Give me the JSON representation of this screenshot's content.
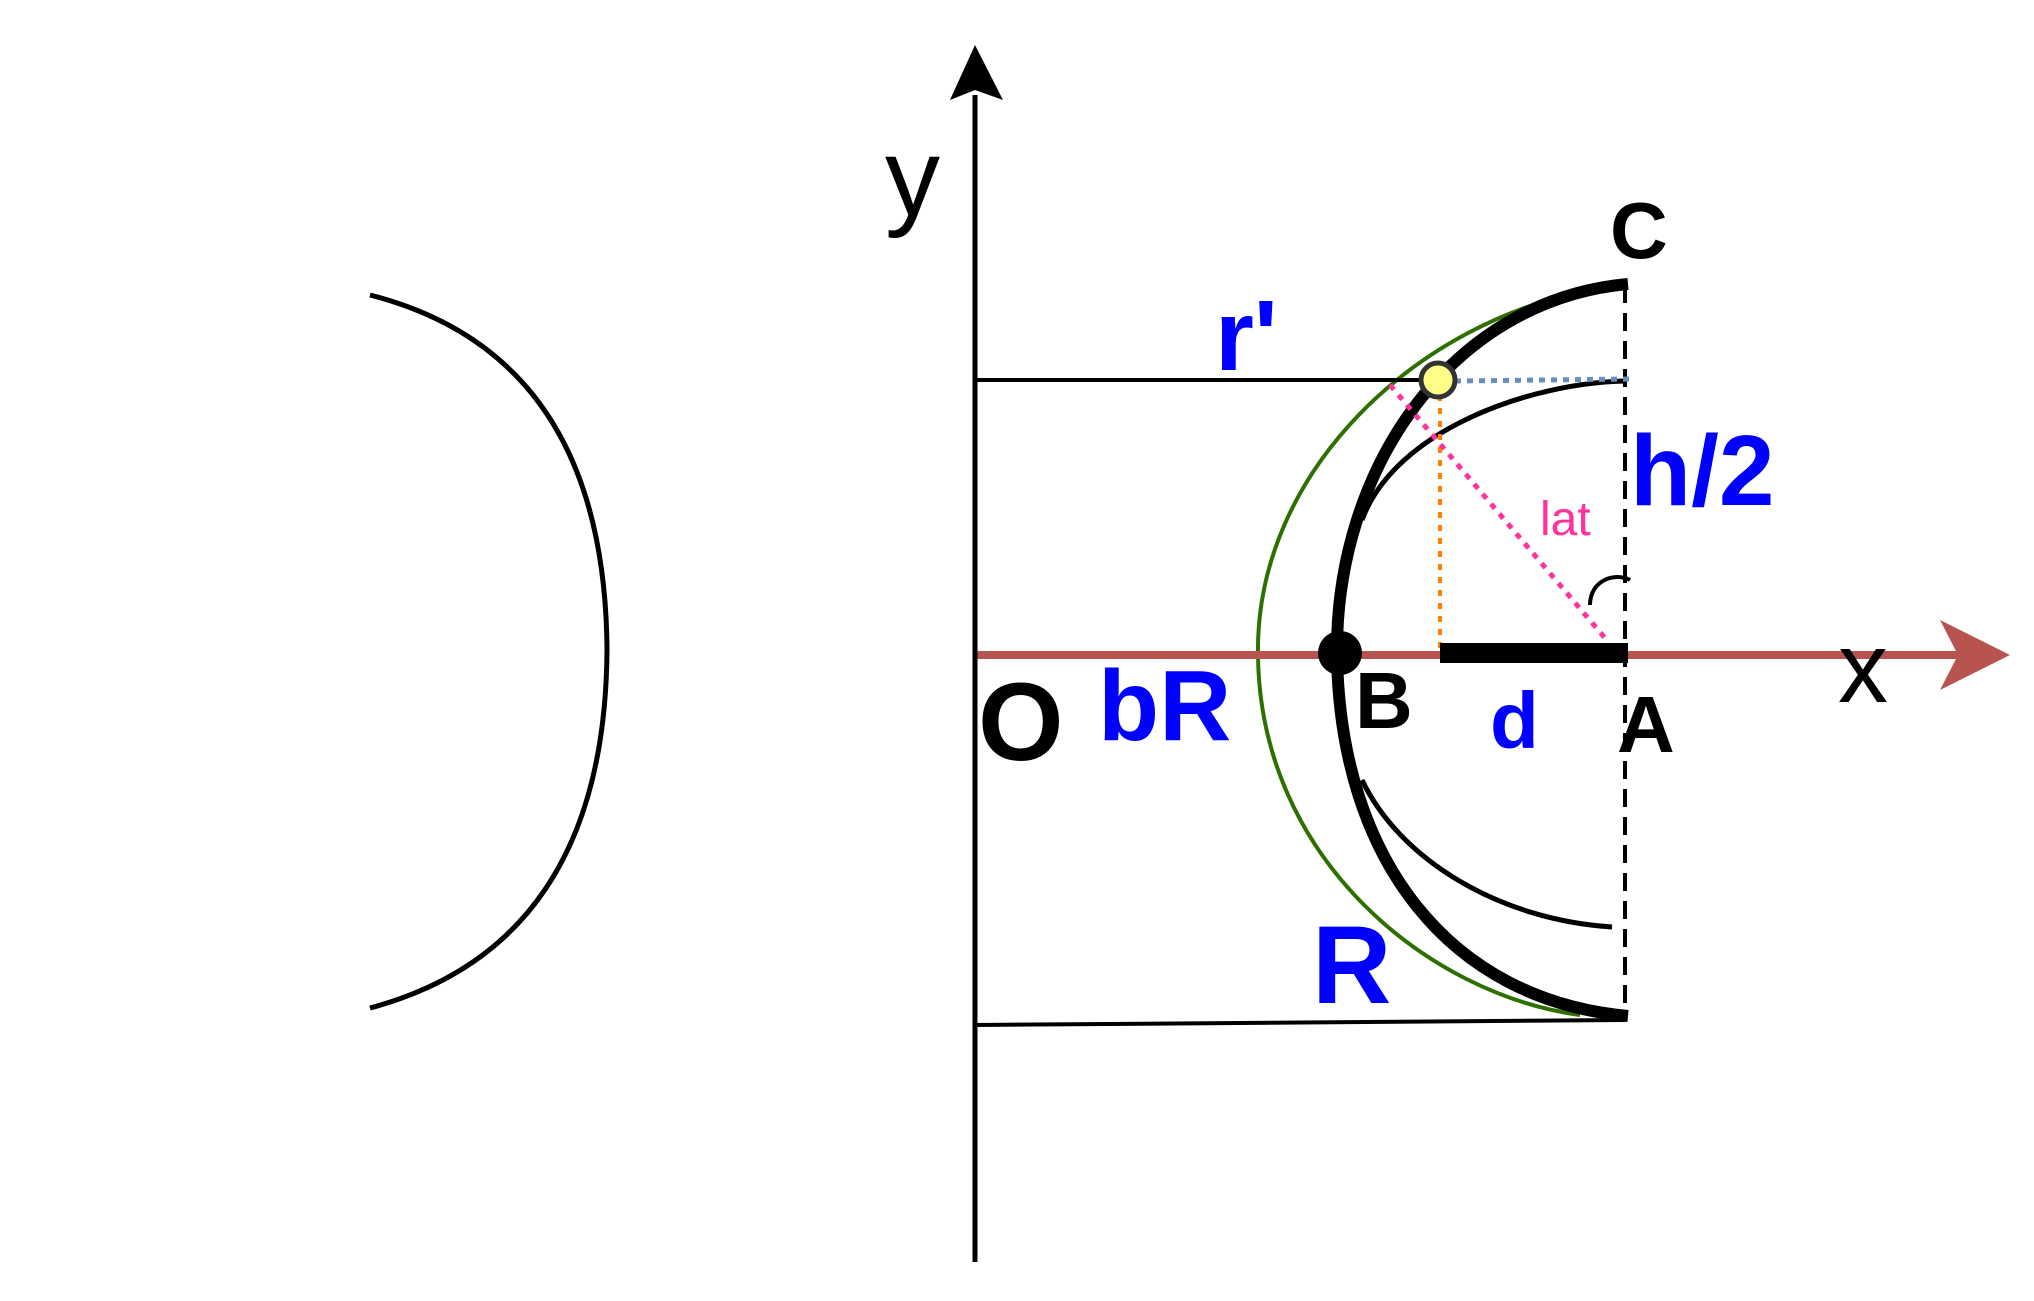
{
  "diagram": {
    "labels": {
      "y_axis": "y",
      "x_axis": "x",
      "origin": "O",
      "point_a": "A",
      "point_b": "B",
      "point_c": "C",
      "r_prime": "r'",
      "half_height": "h/2",
      "b_r": "bR",
      "distance": "d",
      "radius": "R",
      "latitude": "lat"
    },
    "colors": {
      "axis": "#000000",
      "x_axis": "#b85450",
      "label_blue": "#0000ff",
      "lat_line": "#ff3399",
      "green_circle": "#2d7000",
      "point_fill": "#ffff88",
      "dotted_blue": "#6c8ebf",
      "dotted_orange": "#ff8000"
    }
  }
}
